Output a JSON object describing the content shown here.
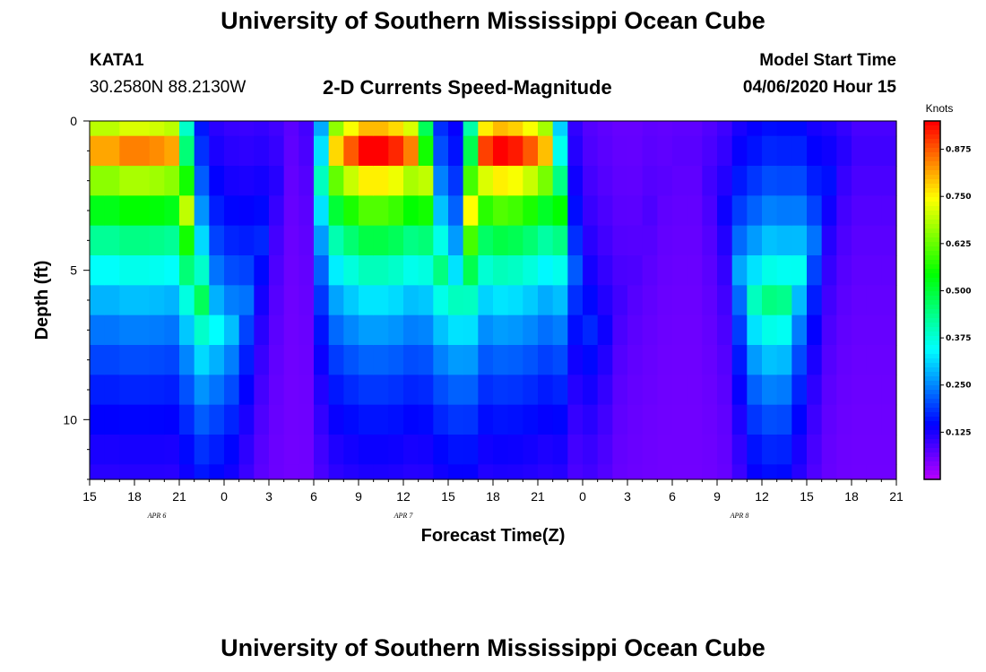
{
  "page": {
    "title_top": "University of Southern Mississippi Ocean Cube",
    "title_bottom": "University of Southern Mississippi Ocean Cube",
    "station": "KATA1",
    "coords": "30.2580N 88.2130W",
    "subtitle": "2-D Currents Speed-Magnitude",
    "model_label": "Model Start Time",
    "model_time": "04/06/2020 Hour 15"
  },
  "chart_data": {
    "type": "heatmap",
    "title": "2-D Currents Speed-Magnitude",
    "xlabel": "Forecast Time(Z)",
    "ylabel": "Depth (ft)",
    "colorbar_label": "Knots",
    "xlim": [
      0,
      54
    ],
    "ylim": [
      0,
      12
    ],
    "y_inverted": true,
    "x_tick_labels": [
      "15",
      "18",
      "21",
      "0",
      "3",
      "6",
      "9",
      "12",
      "15",
      "18",
      "21",
      "0",
      "3",
      "6",
      "9",
      "12",
      "15",
      "18",
      "21"
    ],
    "y_tick_labels": [
      "0",
      "5",
      "10"
    ],
    "day_labels": [
      {
        "text": "APR 6",
        "x": 4.5
      },
      {
        "text": "APR 7",
        "x": 21
      },
      {
        "text": "APR 8",
        "x": 43.5
      }
    ],
    "colorbar_ticks": [
      "0.875",
      "0.750",
      "0.625",
      "0.500",
      "0.375",
      "0.250",
      "0.125"
    ],
    "colorbar_range": [
      0,
      0.95
    ],
    "depth_levels_ft": [
      0,
      0.5,
      1.5,
      2.5,
      3.5,
      4.5,
      5.5,
      6.5,
      7.5,
      8.5,
      9.5,
      10.5,
      11.5,
      12
    ],
    "max_speed_knots": [
      0.82,
      0.82,
      0.85,
      0.85,
      0.84,
      0.82,
      0.7,
      0.48,
      0.35,
      0.3,
      0.24,
      0.18,
      0.12,
      0.08,
      0.1,
      0.4,
      0.78,
      0.88,
      0.95,
      0.95,
      0.92,
      0.85,
      0.7,
      0.45,
      0.4,
      0.75,
      0.9,
      0.95,
      0.93,
      0.88,
      0.8,
      0.55,
      0.22,
      0.18,
      0.14,
      0.1,
      0.09,
      0.09,
      0.08,
      0.08,
      0.08,
      0.1,
      0.14,
      0.28,
      0.4,
      0.45,
      0.44,
      0.36,
      0.24,
      0.16,
      0.12,
      0.1,
      0.1,
      0.1
    ],
    "peak_depth_ft": [
      1,
      1,
      1,
      1,
      1,
      1,
      3,
      6,
      7,
      7,
      6,
      4,
      2,
      0,
      0,
      2,
      1,
      1,
      1,
      1,
      1,
      1,
      2,
      5,
      6,
      3,
      1,
      1,
      1,
      1,
      1,
      3,
      5,
      7,
      7,
      6,
      5,
      3,
      2,
      1,
      1,
      2,
      3,
      5,
      6,
      6,
      6,
      5,
      4,
      2,
      1,
      1,
      1,
      1
    ]
  }
}
